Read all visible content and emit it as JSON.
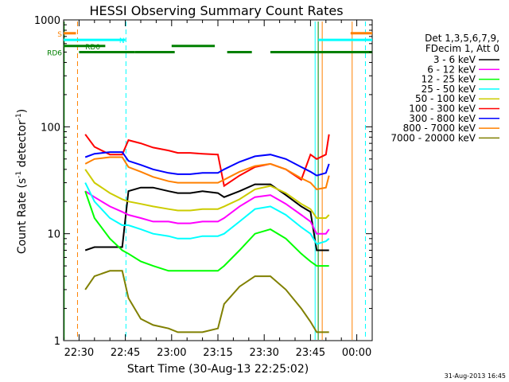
{
  "chart_data": {
    "type": "line",
    "title": "HESSI Observing Summary Count Rates",
    "xlabel": "Start Time (30-Aug-13 22:25:02)",
    "ylabel_main": "Count Rate (s",
    "ylabel_sup1": "-1",
    "ylabel_mid": " detector",
    "ylabel_sup2": "-1",
    "ylabel_end": ")",
    "yscale": "log",
    "ylim": [
      1,
      1000
    ],
    "xlim_minutes": [
      -5,
      95
    ],
    "x_ticks": [
      {
        "label": "22:30",
        "min": 0
      },
      {
        "label": "22:45",
        "min": 15
      },
      {
        "label": "23:00",
        "min": 30
      },
      {
        "label": "23:15",
        "min": 45
      },
      {
        "label": "23:30",
        "min": 60
      },
      {
        "label": "23:45",
        "min": 75
      },
      {
        "label": "00:00",
        "min": 90
      }
    ],
    "y_ticks": [
      {
        "label": "1",
        "value": 1
      },
      {
        "label": "10",
        "value": 10
      },
      {
        "label": "100",
        "value": 100
      },
      {
        "label": "1000",
        "value": 1000
      }
    ],
    "legend_header": [
      "Det 1,3,5,6,7,9,",
      "FDecim 1, Att 0"
    ],
    "legend_position": "right",
    "time_points": [
      2,
      5,
      10,
      14,
      16,
      20,
      24,
      29,
      32,
      36,
      40,
      45,
      47,
      52,
      57,
      62,
      67,
      72,
      75,
      77,
      80,
      81
    ],
    "series": [
      {
        "name": "3 - 6 keV",
        "color": "#000000",
        "values": [
          7,
          7.5,
          7.5,
          7.5,
          25,
          27,
          27,
          25,
          24,
          24,
          25,
          24,
          22,
          25,
          29,
          29,
          23,
          18,
          16,
          7,
          7,
          7
        ]
      },
      {
        "name": "6 - 12 keV",
        "color": "#ff00ff",
        "values": [
          25,
          22,
          18,
          16,
          15,
          14,
          13,
          13,
          12.5,
          12.5,
          13,
          13,
          14,
          18,
          22,
          23,
          19,
          15,
          13,
          10,
          10,
          11
        ]
      },
      {
        "name": "12 - 25 keV",
        "color": "#00ff00",
        "values": [
          25,
          14,
          9,
          7,
          6.5,
          5.5,
          5,
          4.5,
          4.5,
          4.5,
          4.5,
          4.5,
          5,
          7,
          10,
          11,
          9,
          6.5,
          5.5,
          5,
          5,
          5
        ]
      },
      {
        "name": "25 - 50 keV",
        "color": "#00ffff",
        "values": [
          30,
          20,
          14,
          12,
          12,
          11,
          10,
          9.5,
          9,
          9,
          9.5,
          9.5,
          10,
          13,
          17,
          18,
          15,
          11.5,
          10,
          8,
          8.5,
          9
        ]
      },
      {
        "name": "50 - 100 keV",
        "color": "#cccc00",
        "values": [
          40,
          30,
          24,
          21,
          20,
          19,
          18,
          17,
          16.5,
          16.5,
          17,
          17,
          18,
          21,
          26,
          28,
          24,
          19,
          17,
          14,
          14,
          15
        ]
      },
      {
        "name": "100 - 300 keV",
        "color": "#ff0000",
        "values": [
          85,
          65,
          55,
          55,
          75,
          70,
          64,
          60,
          57,
          57,
          56,
          55,
          28,
          35,
          42,
          45,
          40,
          32,
          55,
          50,
          55,
          85
        ]
      },
      {
        "name": "300 - 800 keV",
        "color": "#0000ff",
        "values": [
          52,
          56,
          58,
          58,
          48,
          44,
          40,
          37,
          36,
          36,
          37,
          37,
          40,
          47,
          53,
          55,
          50,
          42,
          38,
          35,
          37,
          45
        ]
      },
      {
        "name": "800 - 7000 keV",
        "color": "#ff8000",
        "values": [
          45,
          50,
          52,
          52,
          42,
          38,
          34,
          31,
          30,
          30,
          30,
          30,
          32,
          38,
          43,
          45,
          40,
          33,
          30,
          26,
          27,
          35
        ]
      },
      {
        "name": "7000 - 20000 keV",
        "color": "#808000",
        "values": [
          3,
          4,
          4.5,
          4.5,
          2.5,
          1.6,
          1.4,
          1.3,
          1.2,
          1.2,
          1.2,
          1.3,
          2.2,
          3.2,
          4,
          4,
          3,
          2,
          1.5,
          1.2,
          1.2,
          1.2
        ]
      }
    ],
    "flag_bars": [
      {
        "name": "S",
        "color": "#ff8000",
        "row_value": 750,
        "segments": [
          [
            -5,
            -1
          ],
          [
            88,
            95
          ]
        ]
      },
      {
        "name": "N",
        "color": "#00ffff",
        "row_value": 650,
        "segments": [
          [
            -5,
            15
          ],
          [
            77.5,
            95
          ]
        ]
      },
      {
        "name": "RD0",
        "color": "#008000",
        "row_value": 570,
        "segments": [
          [
            -5,
            8.5
          ],
          [
            30,
            44
          ]
        ]
      },
      {
        "name": "RD6",
        "color": "#008000",
        "row_value": 500,
        "segments": [
          [
            0,
            18
          ],
          [
            18,
            31
          ],
          [
            48,
            56
          ],
          [
            62,
            77
          ],
          [
            77,
            95
          ]
        ]
      }
    ],
    "vlines": [
      {
        "min": -4.8,
        "color": "#008000",
        "style": "solid"
      },
      {
        "min": -0.5,
        "color": "#ff8000",
        "style": "dashed"
      },
      {
        "min": 15.2,
        "color": "#00ffff",
        "style": "dashed"
      },
      {
        "min": 76.5,
        "color": "#00ffff",
        "style": "solid"
      },
      {
        "min": 77.5,
        "color": "#008000",
        "style": "solid"
      },
      {
        "min": 78.8,
        "color": "#ff8000",
        "style": "solid"
      },
      {
        "min": 88.5,
        "color": "#ff8000",
        "style": "solid"
      },
      {
        "min": 92.8,
        "color": "#00ffff",
        "style": "dashed"
      }
    ],
    "grid": false
  },
  "timestamp": "31-Aug-2013 16:45"
}
